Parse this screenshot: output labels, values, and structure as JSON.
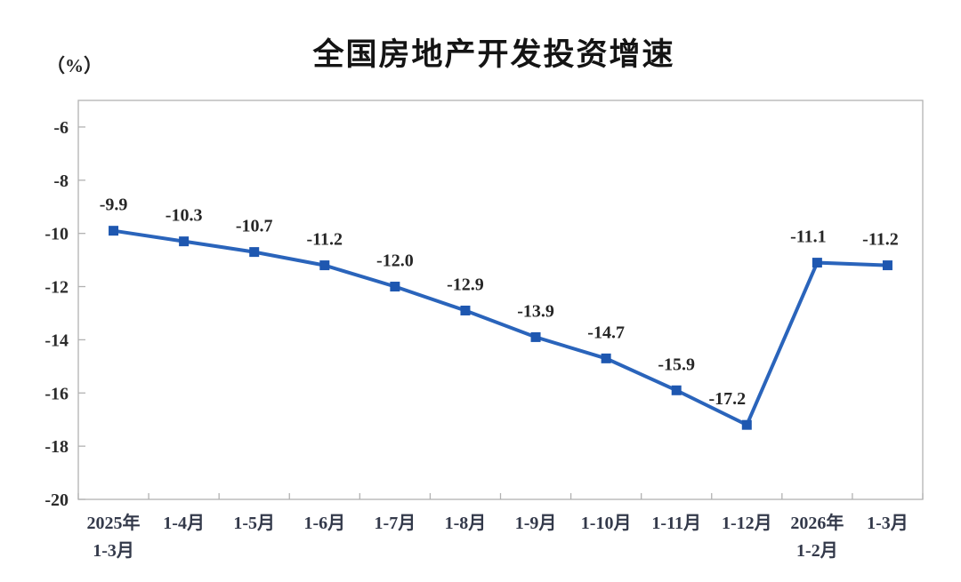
{
  "page": {
    "background": "#ffffff"
  },
  "chart_data": {
    "type": "line",
    "title": "全国房地产开发投资增速",
    "ylabel": "（%）",
    "xlabel": "",
    "categories": [
      [
        "2025年",
        "1-3月"
      ],
      [
        "1-4月"
      ],
      [
        "1-5月"
      ],
      [
        "1-6月"
      ],
      [
        "1-7月"
      ],
      [
        "1-8月"
      ],
      [
        "1-9月"
      ],
      [
        "1-10月"
      ],
      [
        "1-11月"
      ],
      [
        "1-12月"
      ],
      [
        "2026年",
        "1-2月"
      ],
      [
        "1-3月"
      ]
    ],
    "values": [
      -9.9,
      -10.3,
      -10.7,
      -11.2,
      -12.0,
      -12.9,
      -13.9,
      -14.7,
      -15.9,
      -17.2,
      -11.1,
      -11.2
    ],
    "data_labels": [
      "-9.9",
      "-10.3",
      "-10.7",
      "-11.2",
      "-12.0",
      "-12.9",
      "-13.9",
      "-14.7",
      "-15.9",
      "-17.2",
      "-11.1",
      "-11.2"
    ],
    "yticks": [
      "-6",
      "-8",
      "-10",
      "-12",
      "-14",
      "-16",
      "-18",
      "-20"
    ],
    "ytick_values": [
      -6,
      -8,
      -10,
      -12,
      -14,
      -16,
      -18,
      -20
    ],
    "ylim": [
      -20,
      -5
    ],
    "grid": false,
    "legend": "none",
    "line_color": "#2A64BB",
    "marker_color": "#1E57B0",
    "marker_shape": "square",
    "axis_color": "#b2b2b2",
    "label_dx": [
      0,
      0,
      0,
      0,
      0,
      0,
      0,
      0,
      0,
      -22,
      -10,
      -8
    ]
  }
}
